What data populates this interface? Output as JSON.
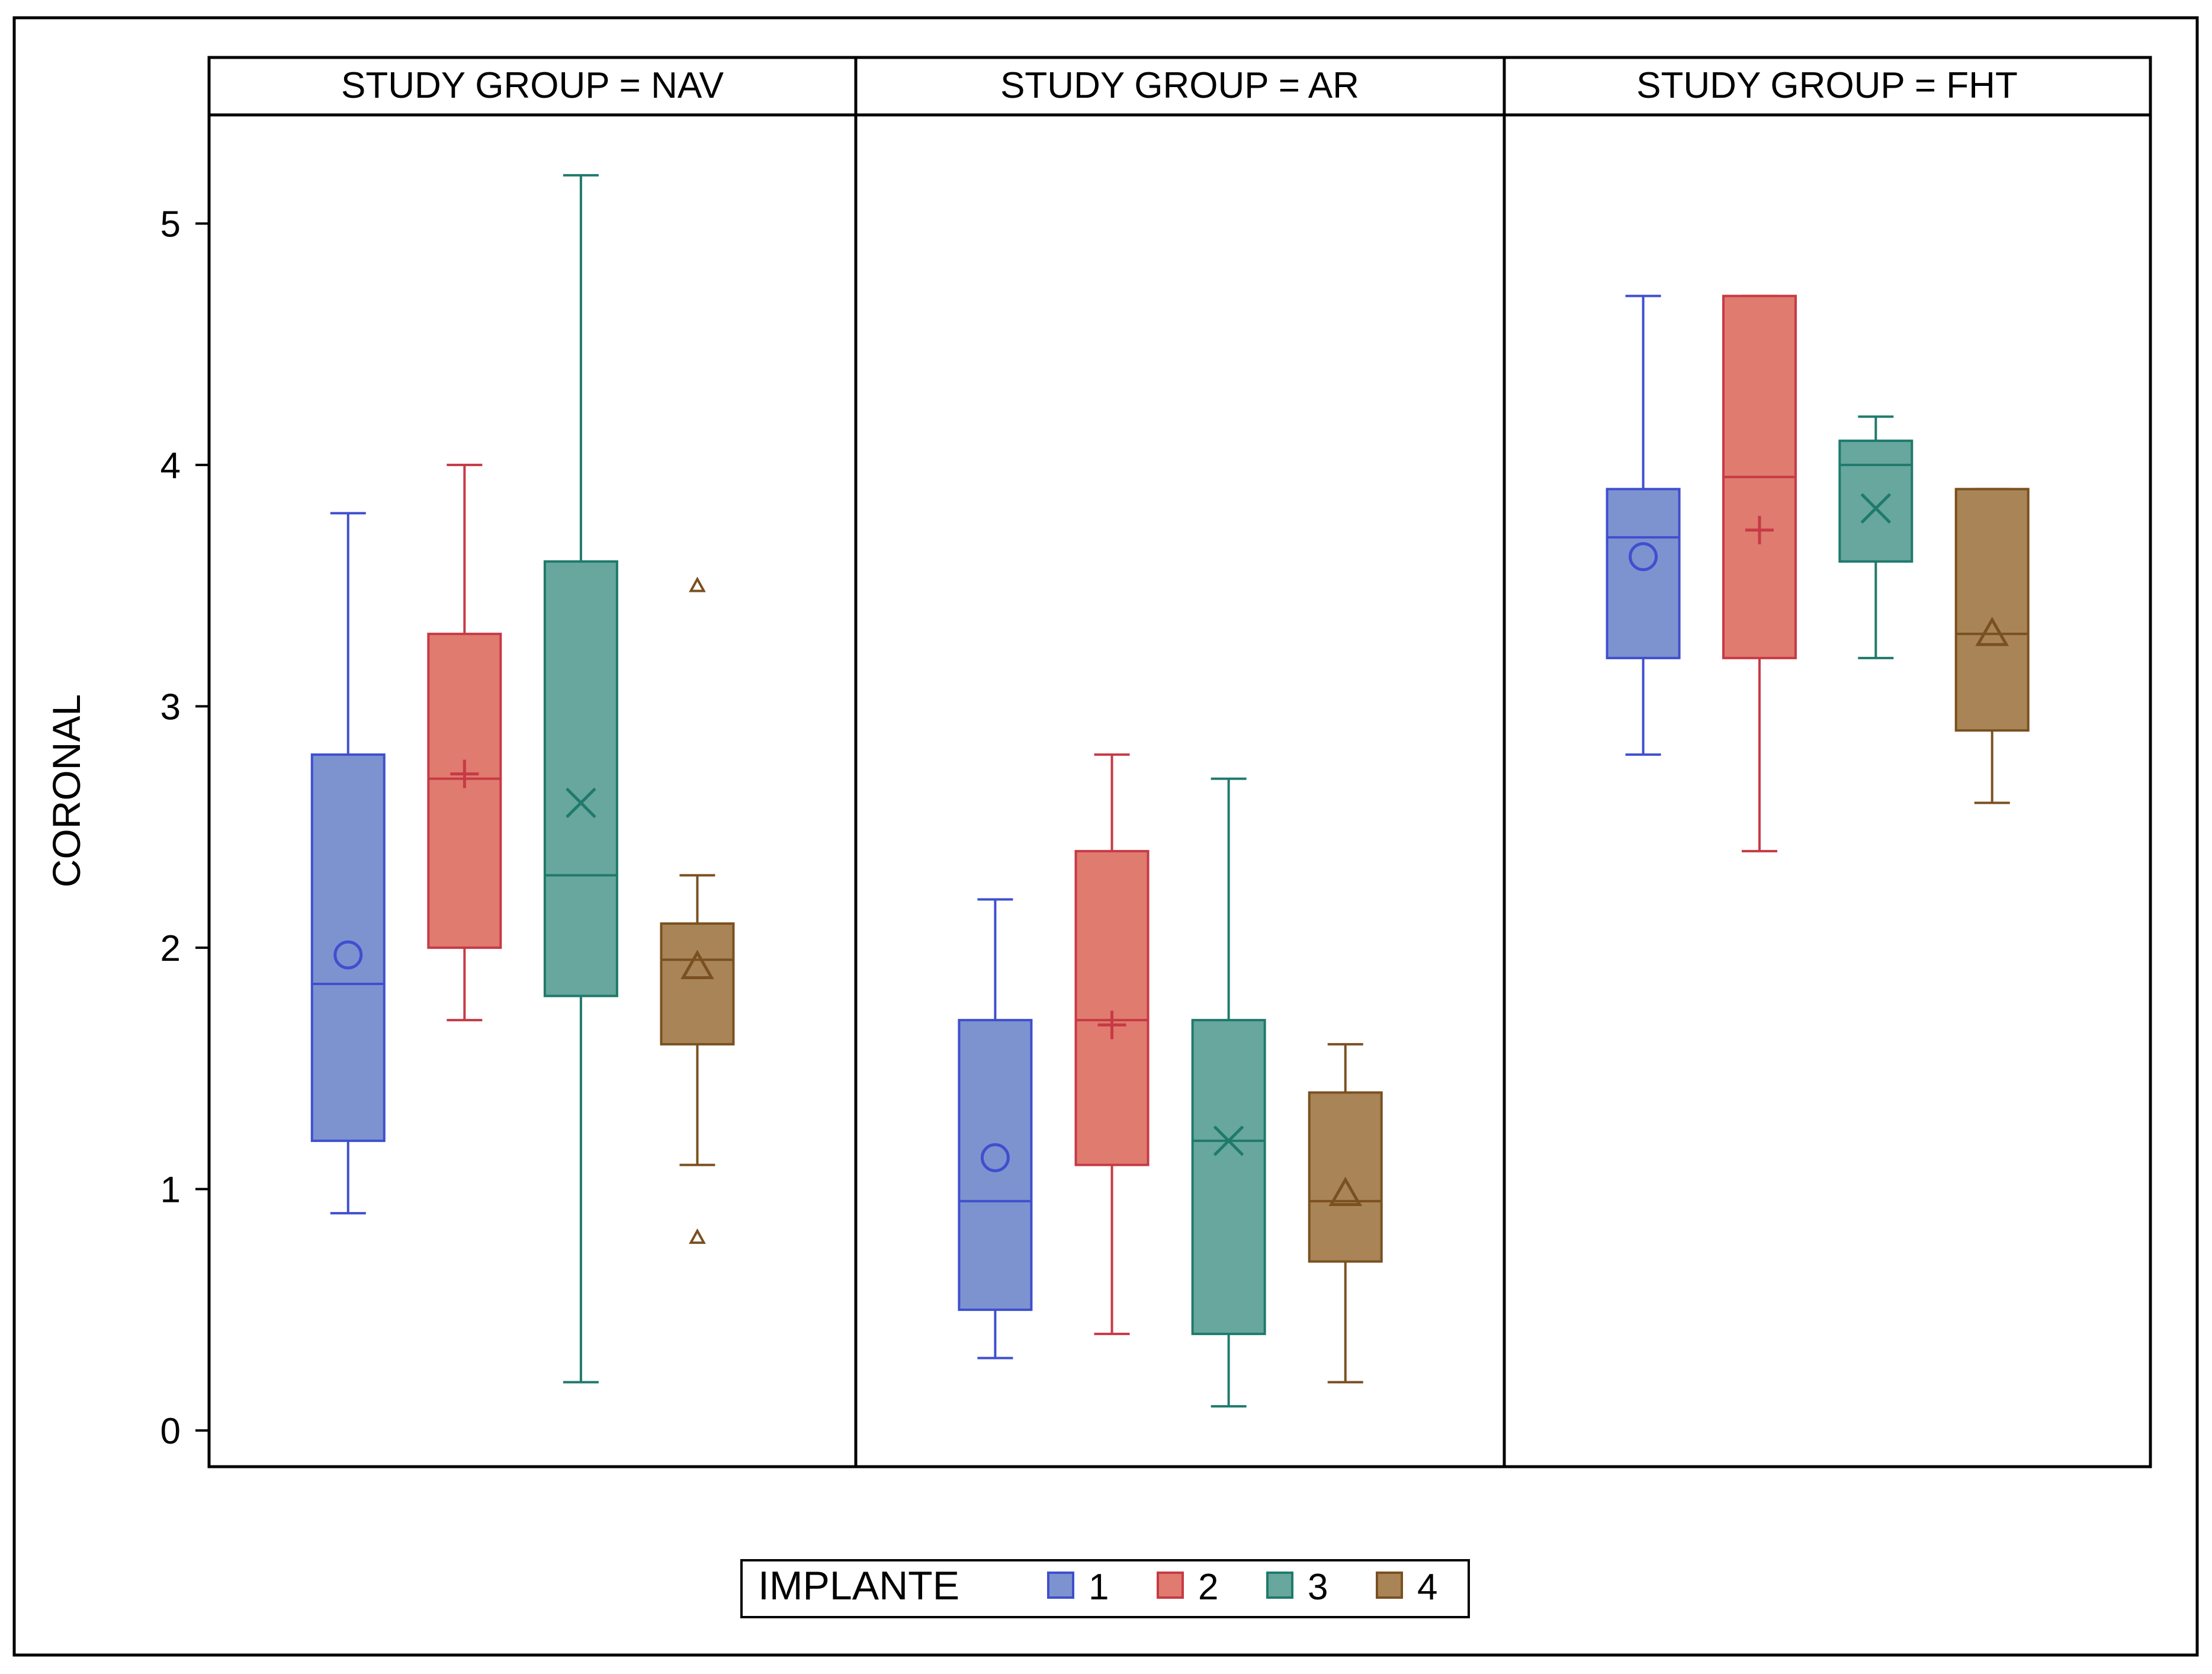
{
  "chart_data": {
    "type": "boxplot",
    "ylabel": "CORONAL",
    "ylim": [
      -0.15,
      5.45
    ],
    "yticks": [
      0,
      1,
      2,
      3,
      4,
      5
    ],
    "legend": {
      "title": "IMPLANTE",
      "position": "bottom-center",
      "entries": [
        {
          "label": "1",
          "color": "#3f4fcf",
          "fill": "#7d93cf"
        },
        {
          "label": "2",
          "color": "#c63a45",
          "fill": "#e07b6f"
        },
        {
          "label": "3",
          "color": "#1f7a6c",
          "fill": "#67a79e"
        },
        {
          "label": "4",
          "color": "#7a5020",
          "fill": "#a98456"
        }
      ]
    },
    "panels": [
      {
        "title": "STUDY GROUP = NAV",
        "boxes": [
          {
            "implante": "1",
            "whisker_low": 0.9,
            "q1": 1.2,
            "median": 1.85,
            "q3": 2.8,
            "whisker_high": 3.8,
            "mean": 1.97,
            "marker": "circle",
            "outliers": []
          },
          {
            "implante": "2",
            "whisker_low": 1.7,
            "q1": 2.0,
            "median": 2.7,
            "q3": 3.3,
            "whisker_high": 4.0,
            "mean": 2.72,
            "marker": "plus",
            "outliers": []
          },
          {
            "implante": "3",
            "whisker_low": 0.2,
            "q1": 1.8,
            "median": 2.3,
            "q3": 3.6,
            "whisker_high": 5.2,
            "mean": 2.6,
            "marker": "x",
            "outliers": []
          },
          {
            "implante": "4",
            "whisker_low": 1.1,
            "q1": 1.6,
            "median": 1.95,
            "q3": 2.1,
            "whisker_high": 2.3,
            "mean": 1.92,
            "marker": "triangle",
            "outliers": [
              3.5,
              0.8
            ]
          }
        ]
      },
      {
        "title": "STUDY GROUP = AR",
        "boxes": [
          {
            "implante": "1",
            "whisker_low": 0.3,
            "q1": 0.5,
            "median": 0.95,
            "q3": 1.7,
            "whisker_high": 2.2,
            "mean": 1.13,
            "marker": "circle",
            "outliers": []
          },
          {
            "implante": "2",
            "whisker_low": 0.4,
            "q1": 1.1,
            "median": 1.7,
            "q3": 2.4,
            "whisker_high": 2.8,
            "mean": 1.68,
            "marker": "plus",
            "outliers": []
          },
          {
            "implante": "3",
            "whisker_low": 0.1,
            "q1": 0.4,
            "median": 1.2,
            "q3": 1.7,
            "whisker_high": 2.7,
            "mean": 1.2,
            "marker": "x",
            "outliers": []
          },
          {
            "implante": "4",
            "whisker_low": 0.2,
            "q1": 0.7,
            "median": 0.95,
            "q3": 1.4,
            "whisker_high": 1.6,
            "mean": 0.98,
            "marker": "triangle",
            "outliers": []
          }
        ]
      },
      {
        "title": "STUDY GROUP = FHT",
        "boxes": [
          {
            "implante": "1",
            "whisker_low": 2.8,
            "q1": 3.2,
            "median": 3.7,
            "q3": 3.9,
            "whisker_high": 4.7,
            "mean": 3.62,
            "marker": "circle",
            "outliers": []
          },
          {
            "implante": "2",
            "whisker_low": 2.4,
            "q1": 3.2,
            "median": 3.95,
            "q3": 4.7,
            "whisker_high": 4.7,
            "mean": 3.73,
            "marker": "plus",
            "outliers": []
          },
          {
            "implante": "3",
            "whisker_low": 3.2,
            "q1": 3.6,
            "median": 4.0,
            "q3": 4.1,
            "whisker_high": 4.2,
            "mean": 3.82,
            "marker": "x",
            "outliers": []
          },
          {
            "implante": "4",
            "whisker_low": 2.6,
            "q1": 2.9,
            "median": 3.3,
            "q3": 3.9,
            "whisker_high": 3.9,
            "mean": 3.3,
            "marker": "triangle",
            "outliers": []
          }
        ]
      }
    ]
  }
}
